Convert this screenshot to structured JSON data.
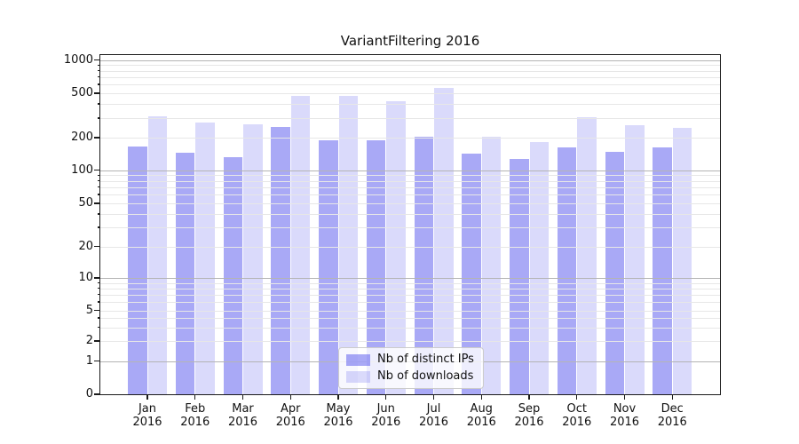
{
  "title": "VariantFiltering 2016",
  "colors": {
    "bar_ips": "rgba(60,60,235,0.44)",
    "bar_downloads": "rgba(60,60,235,0.19)",
    "grid_minor": "#e7e7e7",
    "grid_major": "#b4b4b4",
    "spine": "#1a1a1a",
    "text": "#111111"
  },
  "legend": {
    "items": [
      {
        "label": "Nb of distinct IPs",
        "color": "rgba(60,60,235,0.44)"
      },
      {
        "label": "Nb of downloads",
        "color": "rgba(60,60,235,0.19)"
      }
    ]
  },
  "y_axis": {
    "tick_labels": [
      "1000",
      "500",
      "200",
      "100",
      "50",
      "20",
      "10",
      "5",
      "2",
      "1",
      "0"
    ],
    "tick_values": [
      1000,
      500,
      200,
      100,
      50,
      20,
      10,
      5,
      2,
      1,
      0
    ],
    "minor_grid_values": [
      900,
      800,
      700,
      600,
      500,
      400,
      300,
      200,
      90,
      80,
      70,
      60,
      50,
      40,
      30,
      20,
      9,
      8,
      7,
      6,
      5,
      4,
      3,
      2
    ],
    "major_grid_values": [
      1000,
      100,
      10,
      1
    ]
  },
  "x_axis": {
    "months": [
      "Jan",
      "Feb",
      "Mar",
      "Apr",
      "May",
      "Jun",
      "Jul",
      "Aug",
      "Sep",
      "Oct",
      "Nov",
      "Dec"
    ],
    "year_line": "2016"
  },
  "chart_data": {
    "type": "bar",
    "title": "VariantFiltering 2016",
    "categories": [
      "Jan 2016",
      "Feb 2016",
      "Mar 2016",
      "Apr 2016",
      "May 2016",
      "Jun 2016",
      "Jul 2016",
      "Aug 2016",
      "Sep 2016",
      "Oct 2016",
      "Nov 2016",
      "Dec 2016"
    ],
    "series": [
      {
        "name": "Nb of distinct IPs",
        "values": [
          166,
          144,
          131,
          249,
          190,
          188,
          203,
          142,
          126,
          161,
          149,
          161
        ]
      },
      {
        "name": "Nb of downloads",
        "values": [
          311,
          273,
          265,
          472,
          472,
          421,
          563,
          205,
          182,
          307,
          260,
          244
        ]
      }
    ],
    "yscale": "symlog",
    "y_ticks": [
      0,
      1,
      2,
      5,
      10,
      20,
      50,
      100,
      200,
      500,
      1000
    ],
    "ylim": [
      0,
      1100
    ],
    "xlabel": "",
    "ylabel": "",
    "grid": true,
    "legend_position": "lower center-left inside plot"
  }
}
